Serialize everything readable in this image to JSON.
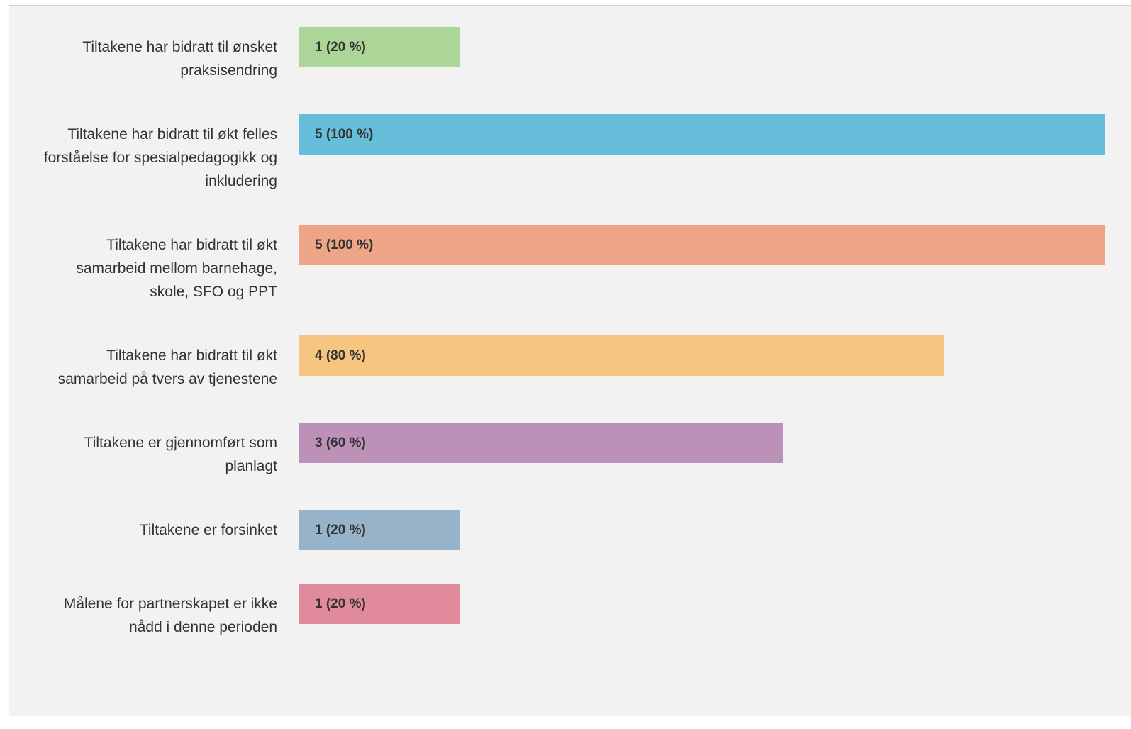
{
  "chart_data": {
    "type": "bar",
    "orientation": "horizontal",
    "categories": [
      "Tiltakene har bidratt til ønsket praksisendring",
      "Tiltakene har bidratt til økt felles forståelse for spesialpedagogikk og inkludering",
      "Tiltakene har bidratt til økt samarbeid mellom barnehage, skole, SFO og PPT",
      "Tiltakene har bidratt til økt samarbeid på tvers av tjenestene",
      "Tiltakene er gjennomført som planlagt",
      "Tiltakene er forsinket",
      "Målene for partnerskapet er ikke nådd i denne perioden"
    ],
    "values": [
      1,
      5,
      5,
      4,
      3,
      1,
      1
    ],
    "value_labels": [
      "1 (20 %)",
      "5 (100 %)",
      "5 (100 %)",
      "4 (80 %)",
      "3 (60 %)",
      "1 (20 %)",
      "1 (20 %)"
    ],
    "colors": [
      "#acd598",
      "#67bedb",
      "#eea587",
      "#f6c680",
      "#bc91b7",
      "#97b3c9",
      "#e28a9d"
    ],
    "xlim": [
      0,
      5
    ]
  }
}
